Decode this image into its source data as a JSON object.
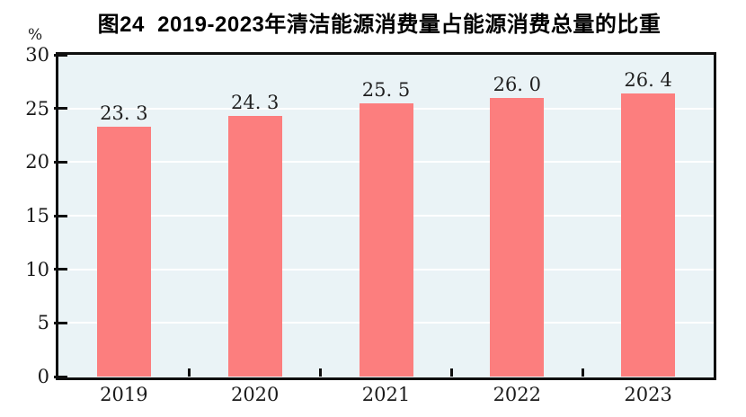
{
  "chart_data": {
    "type": "bar",
    "title": "图24  2019-2023年清洁能源消费量占能源消费总量的比重",
    "unit_label": "%",
    "categories": [
      "2019",
      "2020",
      "2021",
      "2022",
      "2023"
    ],
    "values": [
      23.3,
      24.3,
      25.5,
      26.0,
      26.4
    ],
    "value_labels": [
      "23. 3",
      "24. 3",
      "25. 5",
      "26. 0",
      "26. 4"
    ],
    "ylim": [
      0,
      30
    ],
    "yticks": [
      0,
      5,
      10,
      15,
      20,
      25,
      30
    ],
    "grid": "horizontal",
    "legend": "none",
    "colors": {
      "bar": "#FC7E7E",
      "plot_background": "#EAF3F6",
      "gridline": "#FFFFFF",
      "axis": "#0F0F0F",
      "text": "#1A1A1A"
    }
  }
}
